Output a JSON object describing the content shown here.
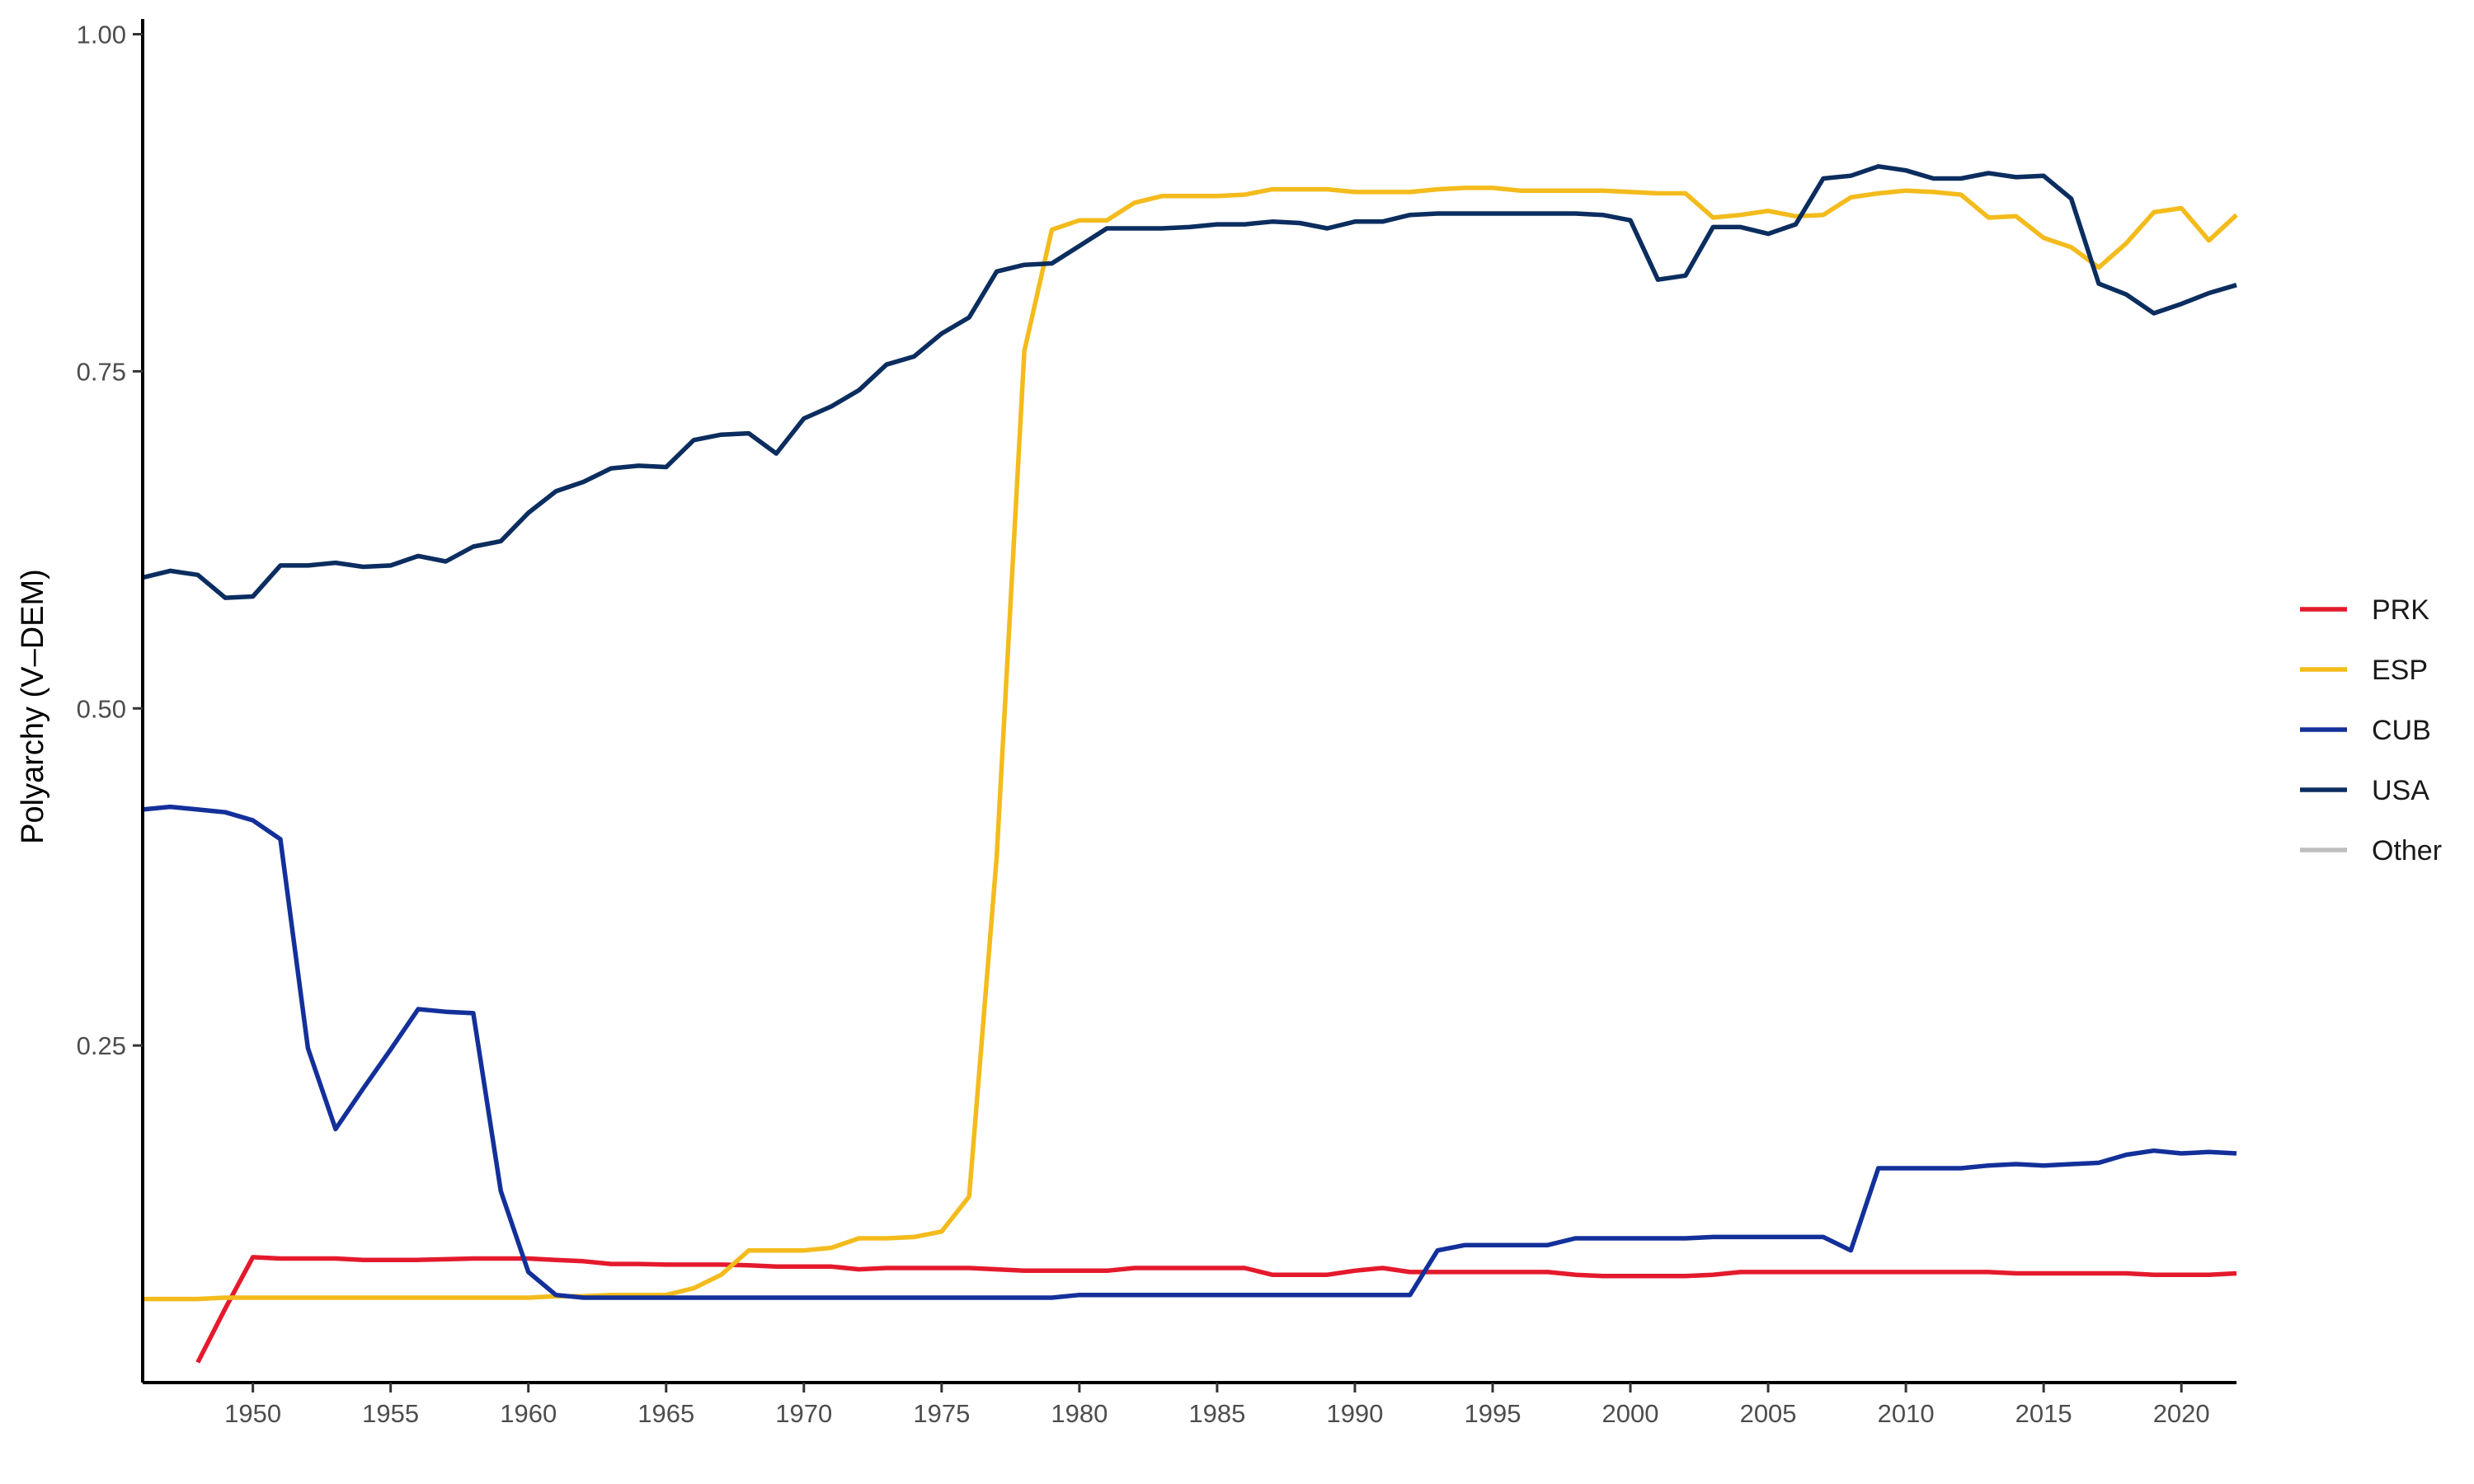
{
  "chart_data": {
    "type": "line",
    "title": "",
    "xlabel": "",
    "ylabel": "Polyarchy (V–DEM)",
    "xlim": [
      1946,
      2022
    ],
    "ylim": [
      0,
      1
    ],
    "xticks": [
      1950,
      1955,
      1960,
      1965,
      1970,
      1975,
      1980,
      1985,
      1990,
      1995,
      2000,
      2005,
      2010,
      2015,
      2020
    ],
    "xtick_labels": [
      "1950",
      "1955",
      "1960",
      "1965",
      "1970",
      "1975",
      "1980",
      "1985",
      "1990",
      "1995",
      "2000",
      "2005",
      "2010",
      "2015",
      "2020"
    ],
    "yticks": [
      0.25,
      0.5,
      0.75,
      1.0
    ],
    "ytick_labels": [
      "0.25",
      "0.50",
      "0.75",
      "1.00"
    ],
    "grid": false,
    "legend_position": "right",
    "series": [
      {
        "name": "PRK",
        "color": "#e41a2c",
        "x": [
          1948,
          1949,
          1950,
          1951,
          1952,
          1953,
          1954,
          1955,
          1956,
          1957,
          1958,
          1959,
          1960,
          1961,
          1962,
          1963,
          1964,
          1965,
          1966,
          1967,
          1968,
          1969,
          1970,
          1971,
          1972,
          1973,
          1974,
          1975,
          1976,
          1977,
          1978,
          1979,
          1980,
          1981,
          1982,
          1983,
          1984,
          1985,
          1986,
          1987,
          1988,
          1989,
          1990,
          1991,
          1992,
          1993,
          1994,
          1995,
          1996,
          1997,
          1998,
          1999,
          2000,
          2001,
          2002,
          2003,
          2004,
          2005,
          2006,
          2007,
          2008,
          2009,
          2010,
          2011,
          2012,
          2013,
          2014,
          2015,
          2016,
          2017,
          2018,
          2019,
          2020,
          2021,
          2022
        ],
        "values": [
          0.015,
          0.055,
          0.093,
          0.092,
          0.092,
          0.092,
          0.091,
          0.091,
          0.091,
          0.0915,
          0.092,
          0.092,
          0.092,
          0.091,
          0.09,
          0.088,
          0.088,
          0.0875,
          0.0875,
          0.0875,
          0.087,
          0.086,
          0.086,
          0.086,
          0.084,
          0.085,
          0.085,
          0.085,
          0.085,
          0.084,
          0.083,
          0.083,
          0.083,
          0.083,
          0.085,
          0.085,
          0.085,
          0.085,
          0.085,
          0.08,
          0.08,
          0.08,
          0.083,
          0.085,
          0.082,
          0.082,
          0.082,
          0.082,
          0.082,
          0.082,
          0.08,
          0.079,
          0.079,
          0.079,
          0.079,
          0.08,
          0.082,
          0.082,
          0.082,
          0.082,
          0.082,
          0.082,
          0.082,
          0.082,
          0.082,
          0.082,
          0.081,
          0.081,
          0.081,
          0.081,
          0.081,
          0.08,
          0.08,
          0.08,
          0.081
        ]
      },
      {
        "name": "ESP",
        "color": "#f3bb1c",
        "x": [
          1946,
          1947,
          1948,
          1949,
          1950,
          1951,
          1952,
          1953,
          1954,
          1955,
          1956,
          1957,
          1958,
          1959,
          1960,
          1961,
          1962,
          1963,
          1964,
          1965,
          1966,
          1967,
          1968,
          1969,
          1970,
          1971,
          1972,
          1973,
          1974,
          1975,
          1976,
          1977,
          1978,
          1979,
          1980,
          1981,
          1982,
          1983,
          1984,
          1985,
          1986,
          1987,
          1988,
          1989,
          1990,
          1991,
          1992,
          1993,
          1994,
          1995,
          1996,
          1997,
          1998,
          1999,
          2000,
          2001,
          2002,
          2003,
          2004,
          2005,
          2006,
          2007,
          2008,
          2009,
          2010,
          2011,
          2012,
          2013,
          2014,
          2015,
          2016,
          2017,
          2018,
          2019,
          2020,
          2021,
          2022
        ],
        "values": [
          0.062,
          0.062,
          0.062,
          0.063,
          0.063,
          0.063,
          0.063,
          0.063,
          0.063,
          0.063,
          0.063,
          0.063,
          0.063,
          0.063,
          0.063,
          0.064,
          0.064,
          0.065,
          0.065,
          0.065,
          0.07,
          0.08,
          0.098,
          0.098,
          0.098,
          0.1,
          0.107,
          0.107,
          0.108,
          0.112,
          0.138,
          0.39,
          0.765,
          0.855,
          0.862,
          0.862,
          0.875,
          0.88,
          0.88,
          0.88,
          0.881,
          0.885,
          0.885,
          0.885,
          0.883,
          0.883,
          0.883,
          0.885,
          0.886,
          0.886,
          0.884,
          0.884,
          0.884,
          0.884,
          0.883,
          0.882,
          0.882,
          0.864,
          0.866,
          0.869,
          0.865,
          0.866,
          0.879,
          0.882,
          0.884,
          0.883,
          0.881,
          0.864,
          0.865,
          0.849,
          0.842,
          0.827,
          0.845,
          0.868,
          0.871,
          0.847,
          0.866
        ]
      },
      {
        "name": "CUB",
        "color": "#13309a",
        "x": [
          1946,
          1947,
          1948,
          1949,
          1950,
          1951,
          1952,
          1953,
          1954,
          1955,
          1956,
          1957,
          1958,
          1959,
          1960,
          1961,
          1962,
          1963,
          1964,
          1965,
          1966,
          1967,
          1968,
          1969,
          1970,
          1971,
          1972,
          1973,
          1974,
          1975,
          1976,
          1977,
          1978,
          1979,
          1980,
          1981,
          1982,
          1983,
          1984,
          1985,
          1986,
          1987,
          1988,
          1989,
          1990,
          1991,
          1992,
          1993,
          1994,
          1995,
          1996,
          1997,
          1998,
          1999,
          2000,
          2001,
          2002,
          2003,
          2004,
          2005,
          2006,
          2007,
          2008,
          2009,
          2010,
          2011,
          2012,
          2013,
          2014,
          2015,
          2016,
          2017,
          2018,
          2019,
          2020,
          2021,
          2022
        ],
        "values": [
          0.425,
          0.427,
          0.425,
          0.423,
          0.417,
          0.403,
          0.248,
          0.188,
          0.218,
          0.247,
          0.277,
          0.275,
          0.274,
          0.142,
          0.082,
          0.065,
          0.063,
          0.063,
          0.063,
          0.063,
          0.063,
          0.063,
          0.063,
          0.063,
          0.063,
          0.063,
          0.063,
          0.063,
          0.063,
          0.063,
          0.063,
          0.063,
          0.063,
          0.063,
          0.065,
          0.065,
          0.065,
          0.065,
          0.065,
          0.065,
          0.065,
          0.065,
          0.065,
          0.065,
          0.065,
          0.065,
          0.065,
          0.098,
          0.102,
          0.102,
          0.102,
          0.102,
          0.107,
          0.107,
          0.107,
          0.107,
          0.107,
          0.108,
          0.108,
          0.108,
          0.108,
          0.108,
          0.098,
          0.159,
          0.159,
          0.159,
          0.159,
          0.161,
          0.162,
          0.161,
          0.162,
          0.163,
          0.169,
          0.172,
          0.17,
          0.171,
          0.17
        ]
      },
      {
        "name": "USA",
        "color": "#0b2d5f",
        "x": [
          1946,
          1947,
          1948,
          1949,
          1950,
          1951,
          1952,
          1953,
          1954,
          1955,
          1956,
          1957,
          1958,
          1959,
          1960,
          1961,
          1962,
          1963,
          1964,
          1965,
          1966,
          1967,
          1968,
          1969,
          1970,
          1971,
          1972,
          1973,
          1974,
          1975,
          1976,
          1977,
          1978,
          1979,
          1980,
          1981,
          1982,
          1983,
          1984,
          1985,
          1986,
          1987,
          1988,
          1989,
          1990,
          1991,
          1992,
          1993,
          1994,
          1995,
          1996,
          1997,
          1998,
          1999,
          2000,
          2001,
          2002,
          2003,
          2004,
          2005,
          2006,
          2007,
          2008,
          2009,
          2010,
          2011,
          2012,
          2013,
          2014,
          2015,
          2016,
          2017,
          2018,
          2019,
          2020,
          2021,
          2022
        ],
        "values": [
          0.597,
          0.602,
          0.599,
          0.582,
          0.583,
          0.606,
          0.606,
          0.608,
          0.605,
          0.606,
          0.613,
          0.609,
          0.62,
          0.624,
          0.645,
          0.661,
          0.668,
          0.678,
          0.68,
          0.679,
          0.699,
          0.703,
          0.704,
          0.689,
          0.715,
          0.724,
          0.736,
          0.755,
          0.761,
          0.778,
          0.79,
          0.824,
          0.829,
          0.83,
          0.843,
          0.856,
          0.856,
          0.856,
          0.857,
          0.859,
          0.859,
          0.861,
          0.86,
          0.856,
          0.861,
          0.861,
          0.866,
          0.867,
          0.867,
          0.867,
          0.867,
          0.867,
          0.867,
          0.866,
          0.862,
          0.818,
          0.821,
          0.857,
          0.857,
          0.852,
          0.859,
          0.893,
          0.895,
          0.902,
          0.899,
          0.893,
          0.893,
          0.897,
          0.894,
          0.895,
          0.878,
          0.815,
          0.807,
          0.793,
          0.8,
          0.808,
          0.814
        ]
      }
    ],
    "legend": [
      {
        "name": "PRK",
        "color": "#e41a2c"
      },
      {
        "name": "ESP",
        "color": "#f3bb1c"
      },
      {
        "name": "CUB",
        "color": "#13309a"
      },
      {
        "name": "USA",
        "color": "#0b2d5f"
      },
      {
        "name": "Other",
        "color": "#bebebe"
      }
    ]
  }
}
